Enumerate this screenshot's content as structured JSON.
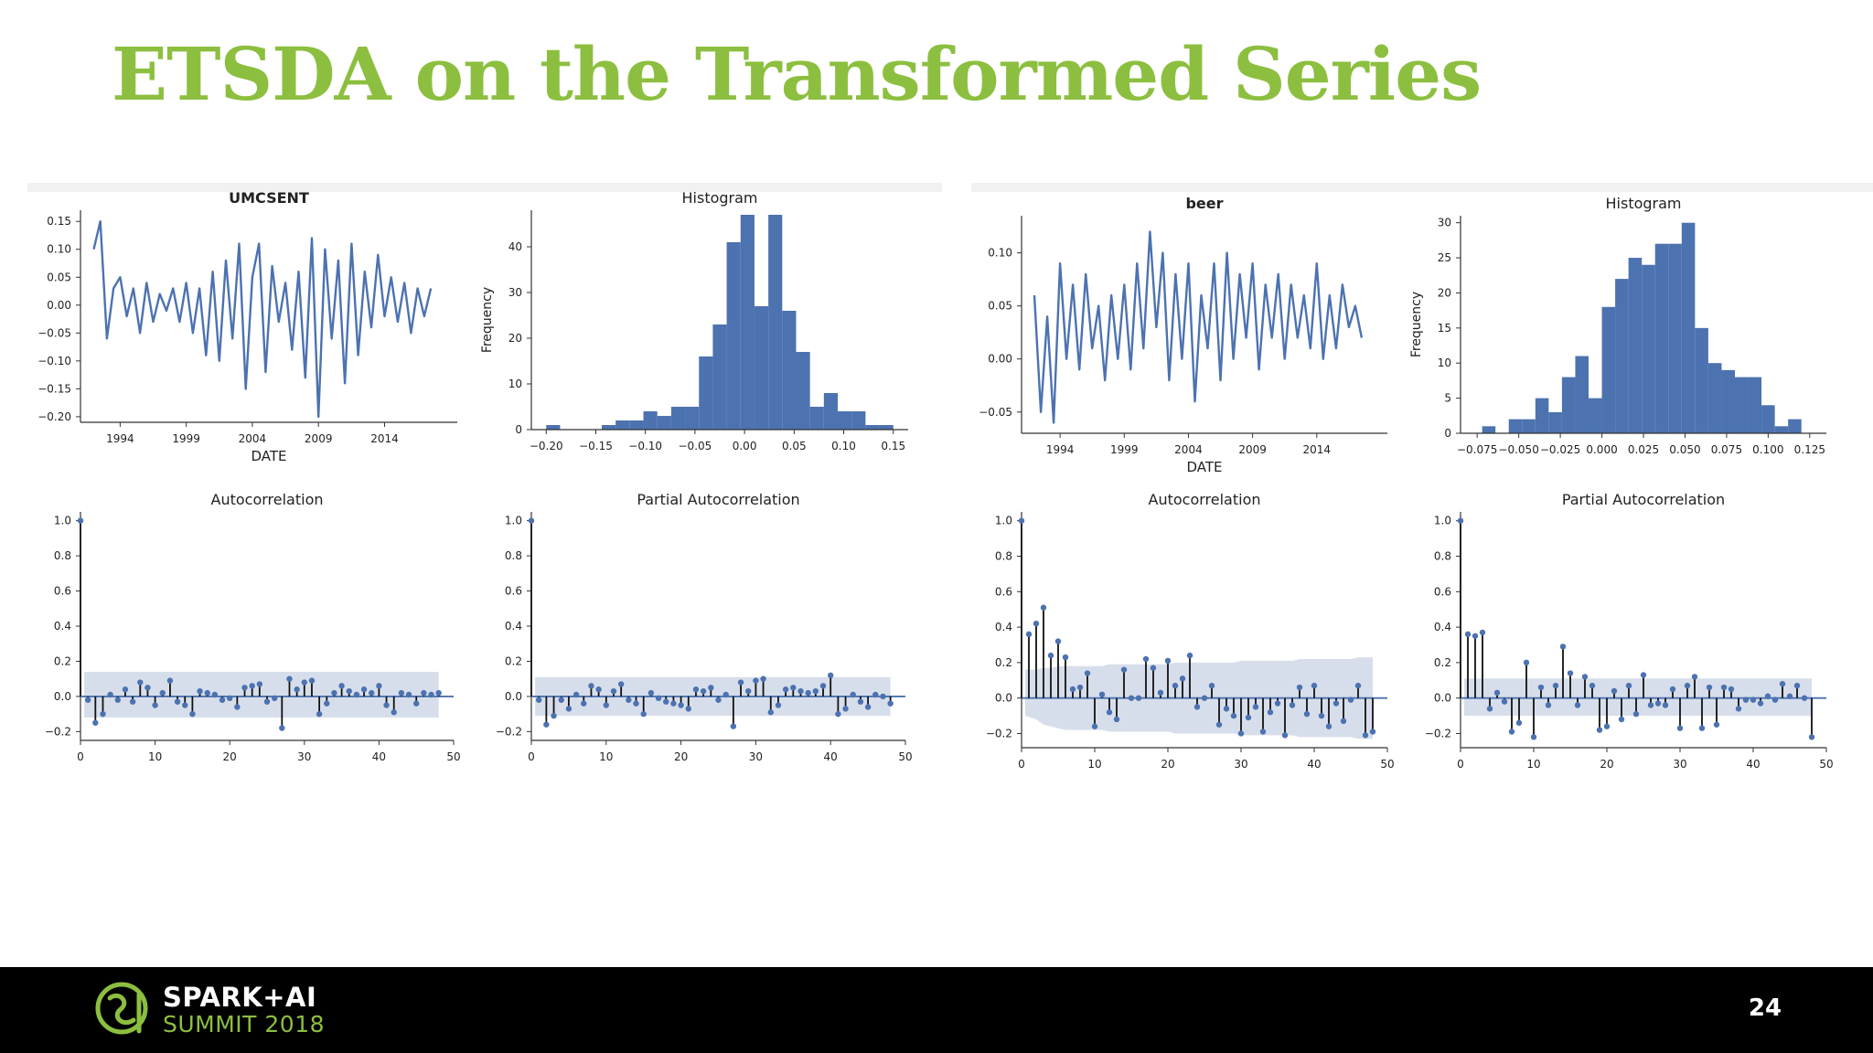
{
  "slide": {
    "title": "ETSDA on the Transformed Series",
    "page_number": "24",
    "logo_line1": "SPARK+AI",
    "logo_line2": "SUMMIT 2018"
  },
  "colors": {
    "title": "#8cbf3f",
    "series": "#4c72b0",
    "band": "#d0d8e8",
    "footer": "#000000"
  },
  "chart_data": [
    {
      "type": "line",
      "title": "UMCSENT",
      "xlabel": "DATE",
      "ylabel": "",
      "xticks": [
        "1994",
        "1999",
        "2004",
        "2009",
        "2014"
      ],
      "yticks": [
        0.15,
        0.1,
        0.05,
        0.0,
        -0.05,
        -0.1,
        -0.15,
        -0.2
      ],
      "xlim": [
        1991.0,
        2019.5
      ],
      "ylim": [
        -0.21,
        0.17
      ],
      "x": [
        1992.0,
        1992.5,
        1993.0,
        1993.5,
        1994.0,
        1994.5,
        1995.0,
        1995.5,
        1996.0,
        1996.5,
        1997.0,
        1997.5,
        1998.0,
        1998.5,
        1999.0,
        1999.5,
        2000.0,
        2000.5,
        2001.0,
        2001.5,
        2002.0,
        2002.5,
        2003.0,
        2003.5,
        2004.0,
        2004.5,
        2005.0,
        2005.5,
        2006.0,
        2006.5,
        2007.0,
        2007.5,
        2008.0,
        2008.5,
        2009.0,
        2009.5,
        2010.0,
        2010.5,
        2011.0,
        2011.5,
        2012.0,
        2012.5,
        2013.0,
        2013.5,
        2014.0,
        2014.5,
        2015.0,
        2015.5,
        2016.0,
        2016.5,
        2017.0,
        2017.5
      ],
      "y": [
        0.1,
        0.15,
        -0.06,
        0.03,
        0.05,
        -0.02,
        0.03,
        -0.05,
        0.04,
        -0.03,
        0.02,
        -0.01,
        0.03,
        -0.03,
        0.04,
        -0.05,
        0.03,
        -0.09,
        0.06,
        -0.1,
        0.08,
        -0.06,
        0.11,
        -0.15,
        0.05,
        0.11,
        -0.12,
        0.07,
        -0.03,
        0.04,
        -0.08,
        0.06,
        -0.13,
        0.12,
        -0.2,
        0.1,
        -0.06,
        0.08,
        -0.14,
        0.11,
        -0.09,
        0.06,
        -0.04,
        0.09,
        -0.02,
        0.05,
        -0.03,
        0.04,
        -0.05,
        0.03,
        -0.02,
        0.03
      ]
    },
    {
      "type": "bar",
      "title": "Histogram",
      "xlabel": "",
      "ylabel": "Frequency",
      "xticks": [
        "-0.20",
        "-0.15",
        "-0.10",
        "-0.05",
        "0.00",
        "0.05",
        "0.10",
        "0.15"
      ],
      "yticks": [
        0,
        10,
        20,
        30,
        40
      ],
      "xlim": [
        -0.215,
        0.165
      ],
      "ylim": [
        0,
        48
      ],
      "bin_edges": [
        -0.2,
        -0.186,
        -0.172,
        -0.158,
        -0.144,
        -0.13,
        -0.116,
        -0.102,
        -0.088,
        -0.074,
        -0.06,
        -0.046,
        -0.032,
        -0.018,
        -0.004,
        0.01,
        0.024,
        0.038,
        0.052,
        0.066,
        0.08,
        0.094,
        0.108,
        0.122,
        0.136,
        0.15
      ],
      "values": [
        1,
        0,
        0,
        0,
        1,
        2,
        2,
        4,
        3,
        5,
        5,
        16,
        23,
        41,
        47,
        27,
        47,
        26,
        17,
        5,
        8,
        4,
        4,
        1,
        1
      ]
    },
    {
      "type": "stem",
      "title": "Autocorrelation",
      "xlabel": "",
      "ylabel": "",
      "xticks": [
        "0",
        "10",
        "20",
        "30",
        "40",
        "50"
      ],
      "yticks": [
        1.0,
        0.8,
        0.6,
        0.4,
        0.2,
        0.0,
        -0.2
      ],
      "xlim": [
        0,
        50
      ],
      "ylim": [
        -0.25,
        1.05
      ],
      "lags": [
        0,
        1,
        2,
        3,
        4,
        5,
        6,
        7,
        8,
        9,
        10,
        11,
        12,
        13,
        14,
        15,
        16,
        17,
        18,
        19,
        20,
        21,
        22,
        23,
        24,
        25,
        26,
        27,
        28,
        29,
        30,
        31,
        32,
        33,
        34,
        35,
        36,
        37,
        38,
        39,
        40,
        41,
        42,
        43,
        44,
        45,
        46,
        47,
        48
      ],
      "values": [
        1.0,
        -0.02,
        -0.15,
        -0.1,
        0.01,
        -0.02,
        0.04,
        -0.03,
        0.08,
        0.05,
        -0.05,
        0.02,
        0.09,
        -0.03,
        -0.05,
        -0.1,
        0.03,
        0.02,
        0.01,
        -0.02,
        -0.01,
        -0.06,
        0.05,
        0.06,
        0.07,
        -0.03,
        -0.01,
        -0.18,
        0.1,
        0.04,
        0.08,
        0.09,
        -0.1,
        -0.04,
        0.02,
        0.06,
        0.03,
        0.01,
        0.04,
        0.02,
        0.06,
        -0.05,
        -0.09,
        0.02,
        0.01,
        -0.04,
        0.02,
        0.01,
        0.02
      ],
      "band_upper": 0.14,
      "band_lower": -0.12
    },
    {
      "type": "stem",
      "title": "Partial Autocorrelation",
      "xlabel": "",
      "ylabel": "",
      "xticks": [
        "0",
        "10",
        "20",
        "30",
        "40",
        "50"
      ],
      "yticks": [
        1.0,
        0.8,
        0.6,
        0.4,
        0.2,
        0.0,
        -0.2
      ],
      "xlim": [
        0,
        50
      ],
      "ylim": [
        -0.25,
        1.05
      ],
      "lags": [
        0,
        1,
        2,
        3,
        4,
        5,
        6,
        7,
        8,
        9,
        10,
        11,
        12,
        13,
        14,
        15,
        16,
        17,
        18,
        19,
        20,
        21,
        22,
        23,
        24,
        25,
        26,
        27,
        28,
        29,
        30,
        31,
        32,
        33,
        34,
        35,
        36,
        37,
        38,
        39,
        40,
        41,
        42,
        43,
        44,
        45,
        46,
        47,
        48
      ],
      "values": [
        1.0,
        -0.02,
        -0.16,
        -0.11,
        -0.02,
        -0.07,
        0.01,
        -0.04,
        0.06,
        0.04,
        -0.05,
        0.03,
        0.07,
        -0.02,
        -0.04,
        -0.1,
        0.02,
        -0.01,
        -0.03,
        -0.04,
        -0.05,
        -0.07,
        0.04,
        0.03,
        0.05,
        -0.02,
        0.01,
        -0.17,
        0.08,
        0.03,
        0.09,
        0.1,
        -0.09,
        -0.05,
        0.04,
        0.05,
        0.03,
        0.02,
        0.03,
        0.06,
        0.12,
        -0.1,
        -0.07,
        0.01,
        -0.03,
        -0.06,
        0.01,
        0.0,
        -0.04
      ],
      "band_upper": 0.11,
      "band_lower": -0.11
    },
    {
      "type": "line",
      "title": "beer",
      "xlabel": "DATE",
      "ylabel": "",
      "xticks": [
        "1994",
        "1999",
        "2004",
        "2009",
        "2014"
      ],
      "yticks": [
        0.1,
        0.05,
        0.0,
        -0.05
      ],
      "xlim": [
        1991.0,
        2019.5
      ],
      "ylim": [
        -0.07,
        0.135
      ],
      "x": [
        1992.0,
        1992.5,
        1993.0,
        1993.5,
        1994.0,
        1994.5,
        1995.0,
        1995.5,
        1996.0,
        1996.5,
        1997.0,
        1997.5,
        1998.0,
        1998.5,
        1999.0,
        1999.5,
        2000.0,
        2000.5,
        2001.0,
        2001.5,
        2002.0,
        2002.5,
        2003.0,
        2003.5,
        2004.0,
        2004.5,
        2005.0,
        2005.5,
        2006.0,
        2006.5,
        2007.0,
        2007.5,
        2008.0,
        2008.5,
        2009.0,
        2009.5,
        2010.0,
        2010.5,
        2011.0,
        2011.5,
        2012.0,
        2012.5,
        2013.0,
        2013.5,
        2014.0,
        2014.5,
        2015.0,
        2015.5,
        2016.0,
        2016.5,
        2017.0,
        2017.5
      ],
      "y": [
        0.06,
        -0.05,
        0.04,
        -0.06,
        0.09,
        0.0,
        0.07,
        -0.01,
        0.08,
        0.01,
        0.05,
        -0.02,
        0.06,
        0.0,
        0.07,
        -0.01,
        0.09,
        0.01,
        0.12,
        0.03,
        0.1,
        -0.02,
        0.08,
        0.0,
        0.09,
        -0.04,
        0.06,
        0.01,
        0.09,
        -0.02,
        0.1,
        0.0,
        0.08,
        0.02,
        0.09,
        -0.01,
        0.07,
        0.02,
        0.08,
        0.0,
        0.07,
        0.02,
        0.06,
        0.01,
        0.09,
        0.0,
        0.06,
        0.01,
        0.07,
        0.03,
        0.05,
        0.02
      ]
    },
    {
      "type": "bar",
      "title": "Histogram",
      "xlabel": "",
      "ylabel": "Frequency",
      "xticks": [
        "-0.075",
        "-0.050",
        "-0.025",
        "0.000",
        "0.025",
        "0.050",
        "0.075",
        "0.100",
        "0.125"
      ],
      "yticks": [
        0,
        5,
        10,
        15,
        20,
        25,
        30
      ],
      "xlim": [
        -0.085,
        0.135
      ],
      "ylim": [
        0,
        31
      ],
      "bin_edges": [
        -0.08,
        -0.072,
        -0.064,
        -0.056,
        -0.048,
        -0.04,
        -0.032,
        -0.024,
        -0.016,
        -0.008,
        0.0,
        0.008,
        0.016,
        0.024,
        0.032,
        0.04,
        0.048,
        0.056,
        0.064,
        0.072,
        0.08,
        0.088,
        0.096,
        0.104,
        0.112,
        0.12,
        0.128
      ],
      "values": [
        0,
        1,
        0,
        2,
        2,
        5,
        3,
        8,
        11,
        5,
        18,
        22,
        25,
        24,
        27,
        27,
        30,
        15,
        10,
        9,
        8,
        8,
        4,
        1,
        2,
        0
      ]
    },
    {
      "type": "stem",
      "title": "Autocorrelation",
      "xlabel": "",
      "ylabel": "",
      "xticks": [
        "0",
        "10",
        "20",
        "30",
        "40",
        "50"
      ],
      "yticks": [
        1.0,
        0.8,
        0.6,
        0.4,
        0.2,
        0.0,
        -0.2
      ],
      "xlim": [
        0,
        50
      ],
      "ylim": [
        -0.28,
        1.05
      ],
      "lags": [
        0,
        1,
        2,
        3,
        4,
        5,
        6,
        7,
        8,
        9,
        10,
        11,
        12,
        13,
        14,
        15,
        16,
        17,
        18,
        19,
        20,
        21,
        22,
        23,
        24,
        25,
        26,
        27,
        28,
        29,
        30,
        31,
        32,
        33,
        34,
        35,
        36,
        37,
        38,
        39,
        40,
        41,
        42,
        43,
        44,
        45,
        46,
        47,
        48
      ],
      "values": [
        1.0,
        0.36,
        0.42,
        0.51,
        0.24,
        0.32,
        0.23,
        0.05,
        0.06,
        0.14,
        -0.16,
        0.02,
        -0.08,
        -0.12,
        0.16,
        0.0,
        0.0,
        0.22,
        0.17,
        0.03,
        0.21,
        0.07,
        0.11,
        0.24,
        -0.05,
        0.0,
        0.07,
        -0.15,
        -0.06,
        -0.1,
        -0.2,
        -0.11,
        -0.05,
        -0.19,
        -0.08,
        -0.03,
        -0.21,
        -0.04,
        0.06,
        -0.09,
        0.07,
        -0.1,
        -0.16,
        -0.03,
        -0.13,
        -0.01,
        0.07,
        -0.21,
        -0.19
      ],
      "band_upper": [
        0.16,
        0.16,
        0.16,
        0.17,
        0.17,
        0.18,
        0.18,
        0.18,
        0.18,
        0.18,
        0.18,
        0.18,
        0.19,
        0.19,
        0.19,
        0.19,
        0.19,
        0.19,
        0.19,
        0.19,
        0.19,
        0.2,
        0.2,
        0.2,
        0.2,
        0.2,
        0.2,
        0.2,
        0.2,
        0.2,
        0.21,
        0.21,
        0.21,
        0.21,
        0.21,
        0.21,
        0.21,
        0.21,
        0.22,
        0.22,
        0.22,
        0.22,
        0.22,
        0.22,
        0.22,
        0.22,
        0.23,
        0.23,
        0.23
      ],
      "band_lower": [
        -0.1,
        -0.1,
        -0.12,
        -0.15,
        -0.16,
        -0.17,
        -0.18,
        -0.18,
        -0.18,
        -0.18,
        -0.18,
        -0.18,
        -0.19,
        -0.19,
        -0.19,
        -0.19,
        -0.19,
        -0.19,
        -0.19,
        -0.19,
        -0.19,
        -0.2,
        -0.2,
        -0.2,
        -0.2,
        -0.2,
        -0.2,
        -0.2,
        -0.2,
        -0.2,
        -0.21,
        -0.21,
        -0.21,
        -0.21,
        -0.21,
        -0.21,
        -0.21,
        -0.21,
        -0.22,
        -0.22,
        -0.22,
        -0.22,
        -0.22,
        -0.22,
        -0.22,
        -0.22,
        -0.23,
        -0.23,
        -0.23
      ]
    },
    {
      "type": "stem",
      "title": "Partial Autocorrelation",
      "xlabel": "",
      "ylabel": "",
      "xticks": [
        "0",
        "10",
        "20",
        "30",
        "40",
        "50"
      ],
      "yticks": [
        1.0,
        0.8,
        0.6,
        0.4,
        0.2,
        0.0,
        -0.2
      ],
      "xlim": [
        0,
        50
      ],
      "ylim": [
        -0.28,
        1.05
      ],
      "lags": [
        0,
        1,
        2,
        3,
        4,
        5,
        6,
        7,
        8,
        9,
        10,
        11,
        12,
        13,
        14,
        15,
        16,
        17,
        18,
        19,
        20,
        21,
        22,
        23,
        24,
        25,
        26,
        27,
        28,
        29,
        30,
        31,
        32,
        33,
        34,
        35,
        36,
        37,
        38,
        39,
        40,
        41,
        42,
        43,
        44,
        45,
        46,
        47,
        48
      ],
      "values": [
        1.0,
        0.36,
        0.35,
        0.37,
        -0.06,
        0.03,
        -0.02,
        -0.19,
        -0.14,
        0.2,
        -0.22,
        0.06,
        -0.04,
        0.07,
        0.29,
        0.14,
        -0.04,
        0.12,
        0.07,
        -0.18,
        -0.16,
        0.04,
        -0.12,
        0.07,
        -0.09,
        0.13,
        -0.04,
        -0.03,
        -0.04,
        0.05,
        -0.17,
        0.07,
        0.12,
        -0.17,
        0.06,
        -0.15,
        0.06,
        0.05,
        -0.06,
        -0.01,
        -0.01,
        -0.03,
        0.01,
        -0.01,
        0.08,
        0.01,
        0.07,
        0.0,
        -0.22
      ],
      "band_upper": 0.11,
      "band_lower": -0.1
    }
  ]
}
